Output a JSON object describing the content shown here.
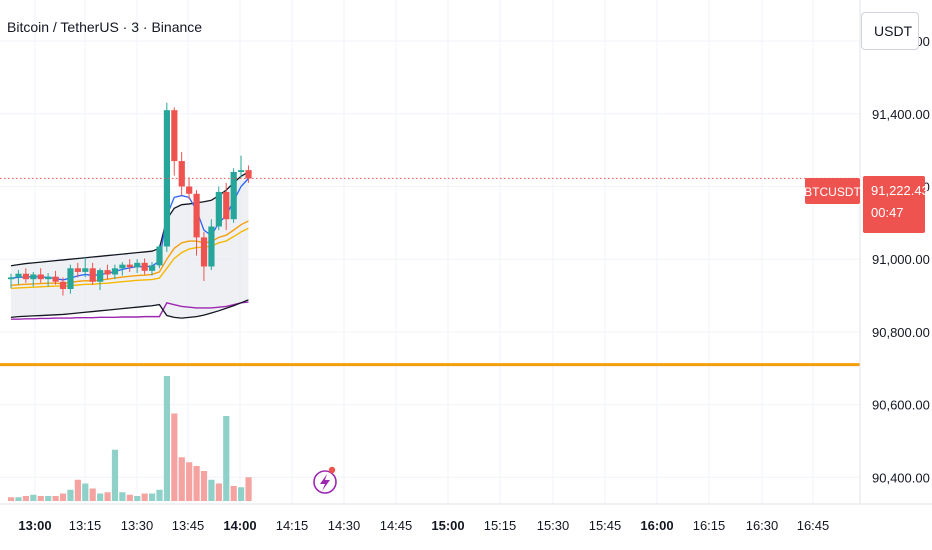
{
  "header": {
    "title": "Bitcoin / TetherUS · 3 · Binance",
    "currency_button": "USDT"
  },
  "colors": {
    "up": "#26a69a",
    "down": "#ef5350",
    "vol_up": "#8fd1c8",
    "vol_down": "#f5a3a1",
    "bb": "#131722",
    "basis": "#2962ff",
    "ema_slow": "#f5b800",
    "ema_fast": "#f59e0b",
    "purple": "#9c27b0",
    "hline": "#f59e0b",
    "price_tag": "#ef5350"
  },
  "price_tag": {
    "symbol": "BTCUSDT",
    "price": "91,222.43",
    "countdown": "00:47"
  },
  "chart_data": {
    "type": "candlestick",
    "symbol": "BTCUSDT",
    "interval": "3",
    "exchange": "Binance",
    "y_ticks": [
      "91,600.00",
      "91,400.00",
      "91,200.00",
      "91,000.00",
      "90,800.00",
      "90,600.00",
      "90,400.00"
    ],
    "y_tick_values": [
      91600,
      91400,
      91200,
      91000,
      90800,
      90600,
      90400
    ],
    "ylim": [
      90350,
      91650
    ],
    "x_ticks": [
      "13:00",
      "13:15",
      "13:30",
      "13:45",
      "14:00",
      "14:15",
      "14:30",
      "14:45",
      "15:00",
      "15:15",
      "15:30",
      "15:45",
      "16:00",
      "16:15",
      "16:30",
      "16:45"
    ],
    "x_ticks_bold": [
      "13:00",
      "14:00",
      "15:00",
      "16:00"
    ],
    "last_price": 91222.43,
    "horizontal_line": 90710,
    "candles": [
      {
        "o": 90945,
        "h": 90960,
        "l": 90920,
        "c": 90950
      },
      {
        "o": 90950,
        "h": 90970,
        "l": 90930,
        "c": 90960
      },
      {
        "o": 90960,
        "h": 90975,
        "l": 90935,
        "c": 90945
      },
      {
        "o": 90945,
        "h": 90965,
        "l": 90925,
        "c": 90958
      },
      {
        "o": 90958,
        "h": 90975,
        "l": 90935,
        "c": 90945
      },
      {
        "o": 90945,
        "h": 90962,
        "l": 90925,
        "c": 90952
      },
      {
        "o": 90952,
        "h": 90968,
        "l": 90930,
        "c": 90938
      },
      {
        "o": 90938,
        "h": 90950,
        "l": 90900,
        "c": 90918
      },
      {
        "o": 90918,
        "h": 90985,
        "l": 90905,
        "c": 90975
      },
      {
        "o": 90975,
        "h": 90990,
        "l": 90950,
        "c": 90965
      },
      {
        "o": 90965,
        "h": 91005,
        "l": 90950,
        "c": 90975
      },
      {
        "o": 90975,
        "h": 90990,
        "l": 90930,
        "c": 90938
      },
      {
        "o": 90938,
        "h": 90975,
        "l": 90915,
        "c": 90970
      },
      {
        "o": 90970,
        "h": 90985,
        "l": 90945,
        "c": 90958
      },
      {
        "o": 90958,
        "h": 90985,
        "l": 90945,
        "c": 90975
      },
      {
        "o": 90975,
        "h": 90992,
        "l": 90955,
        "c": 90985
      },
      {
        "o": 90985,
        "h": 91000,
        "l": 90965,
        "c": 90978
      },
      {
        "o": 90978,
        "h": 91000,
        "l": 90962,
        "c": 90990
      },
      {
        "o": 90990,
        "h": 91002,
        "l": 90958,
        "c": 90968
      },
      {
        "o": 90968,
        "h": 90992,
        "l": 90955,
        "c": 90983
      },
      {
        "o": 90983,
        "h": 91040,
        "l": 90975,
        "c": 91035
      },
      {
        "o": 91035,
        "h": 91430,
        "l": 91020,
        "c": 91410
      },
      {
        "o": 91410,
        "h": 91418,
        "l": 91230,
        "c": 91270
      },
      {
        "o": 91270,
        "h": 91295,
        "l": 91175,
        "c": 91200
      },
      {
        "o": 91200,
        "h": 91225,
        "l": 91165,
        "c": 91180
      },
      {
        "o": 91180,
        "h": 91190,
        "l": 91010,
        "c": 91060
      },
      {
        "o": 91060,
        "h": 91075,
        "l": 90940,
        "c": 90980
      },
      {
        "o": 90980,
        "h": 91110,
        "l": 90970,
        "c": 91090
      },
      {
        "o": 91090,
        "h": 91200,
        "l": 91080,
        "c": 91185
      },
      {
        "o": 91185,
        "h": 91210,
        "l": 91080,
        "c": 91110
      },
      {
        "o": 91110,
        "h": 91250,
        "l": 91100,
        "c": 91240
      },
      {
        "o": 91240,
        "h": 91285,
        "l": 91225,
        "c": 91245
      },
      {
        "o": 91245,
        "h": 91258,
        "l": 91210,
        "c": 91222
      }
    ],
    "volume": [
      {
        "v": 3,
        "up": false
      },
      {
        "v": 3,
        "up": true
      },
      {
        "v": 4,
        "up": false
      },
      {
        "v": 5,
        "up": true
      },
      {
        "v": 4,
        "up": false
      },
      {
        "v": 4,
        "up": true
      },
      {
        "v": 4,
        "up": false
      },
      {
        "v": 6,
        "up": false
      },
      {
        "v": 9,
        "up": true
      },
      {
        "v": 17,
        "up": false
      },
      {
        "v": 14,
        "up": true
      },
      {
        "v": 10,
        "up": false
      },
      {
        "v": 6,
        "up": true
      },
      {
        "v": 7,
        "up": false
      },
      {
        "v": 41,
        "up": true
      },
      {
        "v": 7,
        "up": true
      },
      {
        "v": 5,
        "up": false
      },
      {
        "v": 4,
        "up": true
      },
      {
        "v": 6,
        "up": false
      },
      {
        "v": 6,
        "up": true
      },
      {
        "v": 9,
        "up": true
      },
      {
        "v": 100,
        "up": true
      },
      {
        "v": 70,
        "up": false
      },
      {
        "v": 35,
        "up": false
      },
      {
        "v": 31,
        "up": false
      },
      {
        "v": 28,
        "up": false
      },
      {
        "v": 24,
        "up": false
      },
      {
        "v": 17,
        "up": true
      },
      {
        "v": 14,
        "up": false
      },
      {
        "v": 68,
        "up": true
      },
      {
        "v": 12,
        "up": false
      },
      {
        "v": 11,
        "up": true
      },
      {
        "v": 19,
        "up": false
      }
    ],
    "bb_upper": [
      90982,
      90985,
      90988,
      90990,
      90992,
      90994,
      90996,
      90998,
      91000,
      91002,
      91004,
      91006,
      91008,
      91010,
      91012,
      91014,
      91016,
      91018,
      91020,
      91022,
      91030,
      91110,
      91140,
      91150,
      91152,
      91155,
      91158,
      91162,
      91175,
      91190,
      91210,
      91228,
      91240
    ],
    "bb_lower": [
      90840,
      90842,
      90843,
      90844,
      90845,
      90846,
      90847,
      90848,
      90850,
      90852,
      90854,
      90856,
      90858,
      90860,
      90862,
      90864,
      90866,
      90868,
      90870,
      90872,
      90875,
      90845,
      90840,
      90838,
      90840,
      90842,
      90846,
      90852,
      90858,
      90865,
      90872,
      90880,
      90888
    ],
    "basis": [
      90948,
      90950,
      90951,
      90952,
      90951,
      90950,
      90947,
      90943,
      90948,
      90954,
      90958,
      90955,
      90958,
      90961,
      90966,
      90972,
      90976,
      90980,
      90979,
      90981,
      90995,
      91120,
      91170,
      91175,
      91170,
      91135,
      91080,
      91065,
      91100,
      91120,
      91160,
      91200,
      91222
    ],
    "ema_slow": [
      90920,
      90921,
      90922,
      90923,
      90924,
      90925,
      90926,
      90926,
      90927,
      90929,
      90931,
      90931,
      90933,
      90934,
      90936,
      90938,
      90940,
      90942,
      90943,
      90944,
      90948,
      90975,
      91002,
      91018,
      91028,
      91032,
      91033,
      91036,
      91045,
      91050,
      91062,
      91075,
      91085
    ],
    "ema_fast": [
      90928,
      90930,
      90931,
      90932,
      90933,
      90934,
      90934,
      90933,
      90936,
      90939,
      90941,
      90940,
      90943,
      90945,
      90948,
      90951,
      90953,
      90955,
      90956,
      90958,
      90965,
      91000,
      91030,
      91045,
      91050,
      91050,
      91045,
      91048,
      91060,
      91066,
      91080,
      91095,
      91105
    ],
    "purple": [
      90835,
      90835,
      90836,
      90836,
      90837,
      90837,
      90838,
      90838,
      90838,
      90839,
      90839,
      90839,
      90840,
      90840,
      90840,
      90841,
      90841,
      90841,
      90842,
      90842,
      90842,
      90880,
      90875,
      90870,
      90868,
      90866,
      90866,
      90866,
      90868,
      90870,
      90875,
      90880,
      90882
    ]
  }
}
